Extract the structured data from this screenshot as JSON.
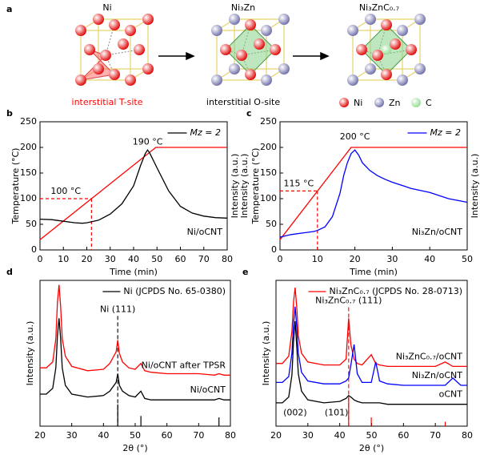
{
  "diagram": {
    "panel": "a",
    "titles": [
      "Ni",
      "Ni₃Zn",
      "Ni₃ZnC₀.₇"
    ],
    "captions": [
      "interstitial T-site",
      "interstitial O-site"
    ],
    "legend": [
      {
        "label": "Ni",
        "color": "#e00000"
      },
      {
        "label": "Zn",
        "color": "#6b6ba8"
      },
      {
        "label": "C",
        "color": "#8fdc8f"
      }
    ]
  },
  "chart_data": [
    {
      "type": "line",
      "panel": "b",
      "xlim": [
        0,
        80
      ],
      "xticks": [
        0,
        10,
        20,
        30,
        40,
        50,
        60,
        70,
        80
      ],
      "ylim": [
        0,
        250
      ],
      "yticks": [
        0,
        50,
        100,
        150,
        200,
        250
      ],
      "xlabel": "Time (min)",
      "ylabels": [
        {
          "text": "Temperature (°C)",
          "color": "#ff0000"
        }
      ],
      "y2label": "Intensity (a.u.)",
      "legend": "upper right",
      "sample": "Ni/oCNT",
      "series": [
        {
          "color": "#ff0000",
          "x": [
            0,
            49.5,
            80
          ],
          "values": [
            20,
            200,
            200
          ]
        },
        {
          "name": "Mz = 2",
          "color": "#000000",
          "x": [
            0,
            5,
            10,
            15,
            18,
            20,
            25,
            30,
            35,
            40,
            43,
            45,
            46,
            47,
            50,
            55,
            60,
            65,
            70,
            75,
            80
          ],
          "values": [
            60,
            59,
            56,
            53,
            52,
            53,
            58,
            70,
            90,
            125,
            165,
            188,
            195,
            188,
            160,
            115,
            85,
            72,
            66,
            63,
            62
          ]
        }
      ],
      "annotations": [
        {
          "text": "100 °C",
          "x": 22,
          "y": 100,
          "guide": true,
          "color": "#ff0000"
        },
        {
          "text": "190 °C",
          "x": 46,
          "y": 190,
          "color": "#ff0000"
        }
      ]
    },
    {
      "type": "line",
      "panel": "c",
      "xlim": [
        0,
        50
      ],
      "xticks": [
        0,
        10,
        20,
        30,
        40,
        50
      ],
      "ylim": [
        0,
        250
      ],
      "yticks": [
        0,
        50,
        100,
        150,
        200,
        250
      ],
      "xlabel": "Time (min)",
      "ylabels": [
        {
          "text": "Intensity (a.u.)",
          "color": "#000000"
        },
        {
          "text": "Temperature (°C)",
          "color": "#ff0000"
        }
      ],
      "y2label": "Intensity (a.u.)",
      "legend": "upper right",
      "sample": "Ni₃Zn/oCNT",
      "series": [
        {
          "color": "#ff0000",
          "x": [
            0,
            19,
            50
          ],
          "values": [
            20,
            200,
            200
          ]
        },
        {
          "name": "Mz = 2",
          "color": "#0000ff",
          "x": [
            0,
            3,
            6,
            9,
            10,
            12,
            14,
            16,
            17,
            18,
            19,
            20,
            21,
            22,
            24,
            26,
            28,
            30,
            35,
            40,
            45,
            50
          ],
          "values": [
            25,
            30,
            33,
            36,
            38,
            45,
            65,
            110,
            145,
            170,
            188,
            195,
            185,
            170,
            155,
            145,
            138,
            132,
            120,
            112,
            100,
            93
          ]
        }
      ],
      "annotations": [
        {
          "text": "115 °C",
          "x": 10,
          "y": 115,
          "guide": true,
          "color": "#ff0000"
        },
        {
          "text": "200 °C",
          "x": 20,
          "y": 200,
          "color": "#ff0000"
        }
      ]
    },
    {
      "type": "line",
      "panel": "d",
      "xlim": [
        20,
        80
      ],
      "xticks": [
        20,
        30,
        40,
        50,
        60,
        70,
        80
      ],
      "ylim": [
        0,
        100
      ],
      "xlabel": "2θ (°)",
      "ylabels": [
        {
          "text": "Intensity (a.u.)",
          "color": "#000000"
        }
      ],
      "inline_labels": true,
      "x": [
        20,
        22,
        24,
        25,
        25.5,
        26,
        26.5,
        27,
        28,
        30,
        35,
        40,
        42,
        43,
        44,
        44.5,
        45,
        46,
        48,
        50,
        51.8,
        53,
        55,
        60,
        65,
        70,
        75,
        76.4,
        78,
        80
      ],
      "series": [
        {
          "name": "Ni/oCNT after TPSR",
          "color": "#ff0000",
          "values": [
            40,
            40,
            44,
            60,
            85,
            97,
            82,
            60,
            48,
            41,
            38,
            39,
            43,
            47,
            51,
            59,
            50,
            44,
            40,
            39,
            43,
            38,
            37,
            36,
            36,
            36,
            35,
            36,
            35,
            35
          ]
        },
        {
          "name": "Ni/oCNT",
          "color": "#000000",
          "values": [
            22,
            22,
            26,
            40,
            62,
            74,
            60,
            40,
            28,
            22,
            20,
            21,
            24,
            27,
            30,
            36,
            28,
            24,
            21,
            20,
            24,
            19,
            18,
            18,
            18,
            18,
            18,
            19,
            18,
            18
          ]
        }
      ],
      "sticks": {
        "name": "Ni (JCPDS No. 65-0380)",
        "color": "#000000",
        "x": [
          44.5,
          51.8,
          76.4
        ],
        "values": [
          15,
          7,
          6
        ]
      },
      "annotations": [
        {
          "text": "Ni (111)",
          "x": 44.5,
          "y": 80,
          "vline": true,
          "color": "#000000"
        }
      ]
    },
    {
      "type": "line",
      "panel": "e",
      "xlim": [
        20,
        80
      ],
      "xticks": [
        20,
        30,
        40,
        50,
        60,
        70,
        80
      ],
      "ylim": [
        0,
        100
      ],
      "xlabel": "2θ (°)",
      "ylabels": [
        {
          "text": "Intensity (a.u.)",
          "color": "#000000"
        }
      ],
      "inline_labels": true,
      "x": [
        20,
        22,
        24,
        25,
        25.5,
        26,
        26.5,
        27,
        28,
        30,
        35,
        40,
        42,
        42.8,
        43.5,
        44.5,
        45.5,
        47,
        49.9,
        51.3,
        52.5,
        55,
        60,
        65,
        70,
        73.1,
        75.5,
        78,
        80
      ],
      "series": [
        {
          "name": "Ni₃ZnC₀.₇/oCNT",
          "color": "#ff0000",
          "values": [
            43,
            43,
            48,
            65,
            85,
            95,
            82,
            62,
            50,
            44,
            42,
            42,
            46,
            74,
            56,
            46,
            43,
            42,
            49,
            43,
            42,
            41,
            41,
            41,
            41,
            44,
            41,
            41,
            41
          ]
        },
        {
          "name": "Ni₃Zn/oCNT",
          "color": "#0000ff",
          "values": [
            30,
            30,
            34,
            50,
            70,
            82,
            68,
            50,
            37,
            31,
            29,
            29,
            31,
            33,
            42,
            56,
            36,
            30,
            30,
            44,
            31,
            29,
            28,
            28,
            28,
            28,
            33,
            28,
            28
          ]
        },
        {
          "name": "oCNT",
          "color": "#000000",
          "values": [
            16,
            16,
            20,
            35,
            58,
            72,
            55,
            36,
            24,
            18,
            16,
            17,
            19,
            21,
            20,
            18,
            17,
            16,
            16,
            16,
            16,
            15,
            15,
            15,
            15,
            15,
            15,
            15,
            15
          ]
        }
      ],
      "sticks": {
        "name": "Ni₃ZnC₀.₇ (JCPDS No. 28-0713)",
        "color": "#ff0000",
        "x": [
          42.8,
          49.9,
          73.1
        ],
        "values": [
          20,
          6,
          3
        ]
      },
      "annotations": [
        {
          "text": "Ni₃ZnC₀.₇ (111)",
          "x": 42.8,
          "y": 86,
          "vline": true,
          "color": "#ff0000"
        },
        {
          "text": "(002)",
          "x": 26,
          "y": 2,
          "color": "#000000"
        },
        {
          "text": "(101)",
          "x": 39,
          "y": 2,
          "color": "#000000"
        }
      ]
    }
  ]
}
